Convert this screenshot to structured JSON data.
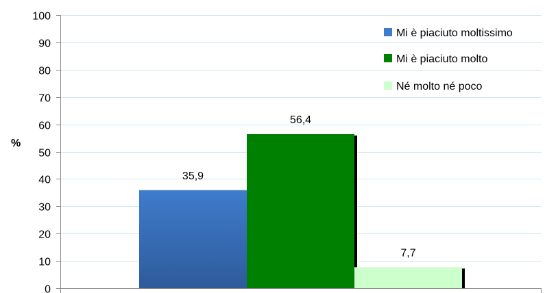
{
  "chart_data": {
    "type": "bar",
    "title": "",
    "xlabel": "",
    "ylabel": "%",
    "ylim": [
      0,
      100
    ],
    "yticks": [
      0,
      10,
      20,
      30,
      40,
      50,
      60,
      70,
      80,
      90,
      100
    ],
    "grid": true,
    "legend_position": "top-right",
    "series": [
      {
        "name": "Mi è piaciuto moltissimo",
        "value": 35.9,
        "label": "35,9",
        "color": "#3a6bb5"
      },
      {
        "name": "Mi è piaciuto molto",
        "value": 56.4,
        "label": "56,4",
        "color": "#008000"
      },
      {
        "name": "Né molto né poco",
        "value": 7.7,
        "label": "7,7",
        "color": "#ccffcc"
      }
    ]
  }
}
